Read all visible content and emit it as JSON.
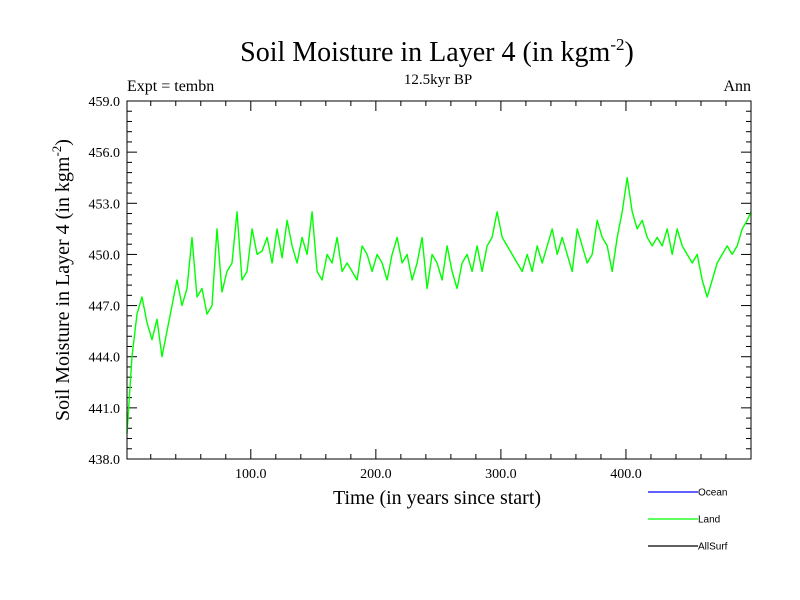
{
  "chart_data": {
    "type": "line",
    "title": "Soil Moisture in Layer 4 (in kgm",
    "title_sup": "-2",
    "title_close": ")",
    "subtitle": "12.5kyr BP",
    "left_label": "Expt = tembn",
    "right_label": "Ann",
    "xlabel": "Time (in years since start)",
    "ylabel": "Soil Moisture in Layer 4 (in kgm",
    "ylabel_sup": "-2",
    "ylabel_close": ")",
    "xlim": [
      1,
      500
    ],
    "ylim": [
      438.0,
      459.0
    ],
    "yticks": [
      438.0,
      441.0,
      444.0,
      447.0,
      450.0,
      453.0,
      456.0,
      459.0
    ],
    "ytick_labels": [
      "438.0",
      "441.0",
      "444.0",
      "447.0",
      "450.0",
      "453.0",
      "456.0",
      "459.0"
    ],
    "xticks": [
      100,
      200,
      300,
      400
    ],
    "xtick_labels": [
      "100.0",
      "200.0",
      "300.0",
      "400.0"
    ],
    "legend_position": "bottom-right",
    "series": [
      {
        "name": "Ocean",
        "color": "#0000ff",
        "x": [],
        "values": []
      },
      {
        "name": "Land",
        "color": "#00ff00",
        "x": [
          1,
          5,
          9,
          13,
          17,
          21,
          25,
          29,
          33,
          37,
          41,
          45,
          49,
          53,
          57,
          61,
          65,
          69,
          73,
          77,
          81,
          85,
          89,
          93,
          97,
          101,
          105,
          109,
          113,
          117,
          121,
          125,
          129,
          133,
          137,
          141,
          145,
          149,
          153,
          157,
          161,
          165,
          169,
          173,
          177,
          181,
          185,
          189,
          193,
          197,
          201,
          205,
          209,
          213,
          217,
          221,
          225,
          229,
          233,
          237,
          241,
          245,
          249,
          253,
          257,
          261,
          265,
          269,
          273,
          277,
          281,
          285,
          289,
          293,
          297,
          301,
          305,
          309,
          313,
          317,
          321,
          325,
          329,
          333,
          337,
          341,
          345,
          349,
          353,
          357,
          361,
          365,
          369,
          373,
          377,
          381,
          385,
          389,
          393,
          397,
          401,
          405,
          409,
          413,
          417,
          421,
          425,
          429,
          433,
          437,
          441,
          445,
          449,
          453,
          457,
          461,
          465,
          469,
          473,
          477,
          481,
          485,
          489,
          493,
          497,
          500
        ],
        "values": [
          439.5,
          444.0,
          446.5,
          447.5,
          446.0,
          445.0,
          446.2,
          444.0,
          445.5,
          447.0,
          448.5,
          447.0,
          448.0,
          451.0,
          447.5,
          448.0,
          446.5,
          447.0,
          451.5,
          447.8,
          449.0,
          449.5,
          452.5,
          448.5,
          449.0,
          451.5,
          450.0,
          450.2,
          451.0,
          449.5,
          451.5,
          449.8,
          452.0,
          450.5,
          449.5,
          451.0,
          450.0,
          452.5,
          449.0,
          448.5,
          450.0,
          449.5,
          451.0,
          449.0,
          449.5,
          449.0,
          448.5,
          450.5,
          450.0,
          449.0,
          450.0,
          449.5,
          448.5,
          450.0,
          451.0,
          449.5,
          450.0,
          448.5,
          449.5,
          451.0,
          448.0,
          450.0,
          449.5,
          448.5,
          450.5,
          449.0,
          448.0,
          449.5,
          450.0,
          449.0,
          450.5,
          449.0,
          450.5,
          451.0,
          452.5,
          451.0,
          450.5,
          450.0,
          449.5,
          449.0,
          450.0,
          449.0,
          450.5,
          449.5,
          450.5,
          451.5,
          450.0,
          451.0,
          450.0,
          449.0,
          451.5,
          450.5,
          449.5,
          450.0,
          452.0,
          451.0,
          450.5,
          449.0,
          451.0,
          452.5,
          454.5,
          452.5,
          451.5,
          452.0,
          451.0,
          450.5,
          451.0,
          450.5,
          451.5,
          450.0,
          451.5,
          450.5,
          450.0,
          449.5,
          450.0,
          448.5,
          447.5,
          448.5,
          449.5,
          450.0,
          450.5,
          450.0,
          450.5,
          451.5,
          452.0,
          452.5
        ]
      },
      {
        "name": "AllSurf",
        "color": "#000000",
        "x": [],
        "values": []
      }
    ]
  }
}
